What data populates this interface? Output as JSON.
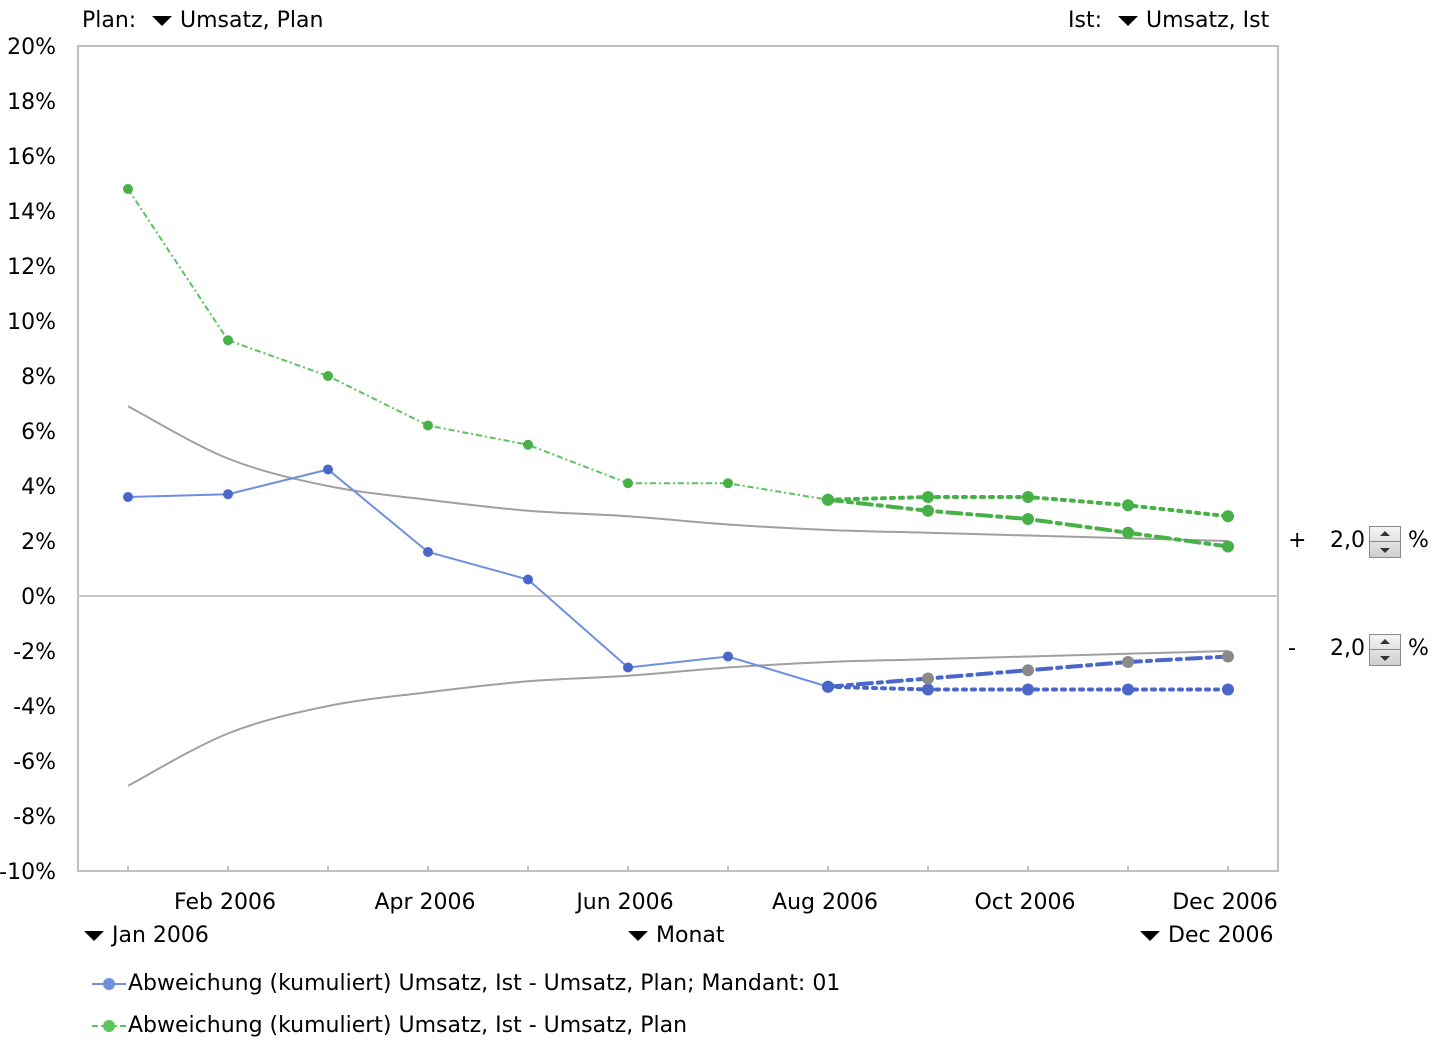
{
  "header": {
    "plan_label": "Plan:",
    "plan_value": "Umsatz, Plan",
    "ist_label": "Ist:",
    "ist_value": "Umsatz, Ist"
  },
  "footer_selectors": {
    "start": "Jan 2006",
    "granularity": "Monat",
    "end": "Dec 2006"
  },
  "tolerance": {
    "upper_sign": "+",
    "upper_value": "2,0",
    "lower_sign": "-",
    "lower_value": "2,0",
    "unit": "%"
  },
  "colors": {
    "blue": "#6f8fe0",
    "blue_dark": "#4a66c8",
    "green": "#5cc25c",
    "green_dark": "#47b047",
    "gray": "#a0a0a0",
    "grid_zero": "#c8c8c8",
    "frame": "#c0c0c0"
  },
  "chart_data": {
    "type": "line",
    "x": [
      "Jan 2006",
      "Feb 2006",
      "Mar 2006",
      "Apr 2006",
      "May 2006",
      "Jun 2006",
      "Jul 2006",
      "Aug 2006",
      "Sep 2006",
      "Oct 2006",
      "Nov 2006",
      "Dec 2006"
    ],
    "x_tick_labels": [
      "Feb 2006",
      "Apr 2006",
      "Jun 2006",
      "Aug 2006",
      "Oct 2006",
      "Dec 2006"
    ],
    "y_tick_labels": [
      "20%",
      "18%",
      "16%",
      "14%",
      "12%",
      "10%",
      "8%",
      "6%",
      "4%",
      "2%",
      "0%",
      "-2%",
      "-4%",
      "-6%",
      "-8%",
      "-10%"
    ],
    "ylim": [
      -10,
      20
    ],
    "y_unit": "%",
    "series": [
      {
        "name": "Abweichung (kumuliert) Umsatz, Ist - Umsatz, Plan; Mandant: 01",
        "color": "blue",
        "values": [
          3.6,
          3.7,
          4.6,
          1.6,
          0.6,
          -2.6,
          -2.2,
          -3.3,
          null,
          null,
          null,
          null
        ]
      },
      {
        "name": "Abweichung (kumuliert) Umsatz, Ist - Umsatz, Plan",
        "color": "green",
        "values": [
          14.8,
          9.3,
          8.0,
          6.2,
          5.5,
          4.1,
          4.1,
          3.5,
          null,
          null,
          null,
          null
        ]
      }
    ],
    "forecasts": [
      {
        "of": "blue",
        "style": "dotted",
        "values": [
          null,
          null,
          null,
          null,
          null,
          null,
          null,
          -3.3,
          -3.4,
          -3.4,
          -3.4,
          -3.4
        ]
      },
      {
        "of": "blue",
        "style": "dash-dot",
        "values": [
          null,
          null,
          null,
          null,
          null,
          null,
          null,
          -3.3,
          -3.0,
          -2.7,
          -2.4,
          -2.2
        ]
      },
      {
        "of": "green",
        "style": "dotted",
        "values": [
          null,
          null,
          null,
          null,
          null,
          null,
          null,
          3.5,
          3.6,
          3.6,
          3.3,
          2.9
        ]
      },
      {
        "of": "green",
        "style": "dash-dot",
        "values": [
          null,
          null,
          null,
          null,
          null,
          null,
          null,
          3.5,
          3.1,
          2.8,
          2.3,
          1.8
        ]
      }
    ],
    "tolerance_bands": [
      {
        "side": "upper",
        "values": [
          6.9,
          5.0,
          4.0,
          3.5,
          3.1,
          2.9,
          2.6,
          2.4,
          2.3,
          2.2,
          2.1,
          2.0
        ]
      },
      {
        "side": "lower",
        "values": [
          -6.9,
          -5.0,
          -4.0,
          -3.5,
          -3.1,
          -2.9,
          -2.6,
          -2.4,
          -2.3,
          -2.2,
          -2.1,
          -2.0
        ]
      }
    ],
    "grid": false,
    "legend_position": "bottom-left"
  }
}
